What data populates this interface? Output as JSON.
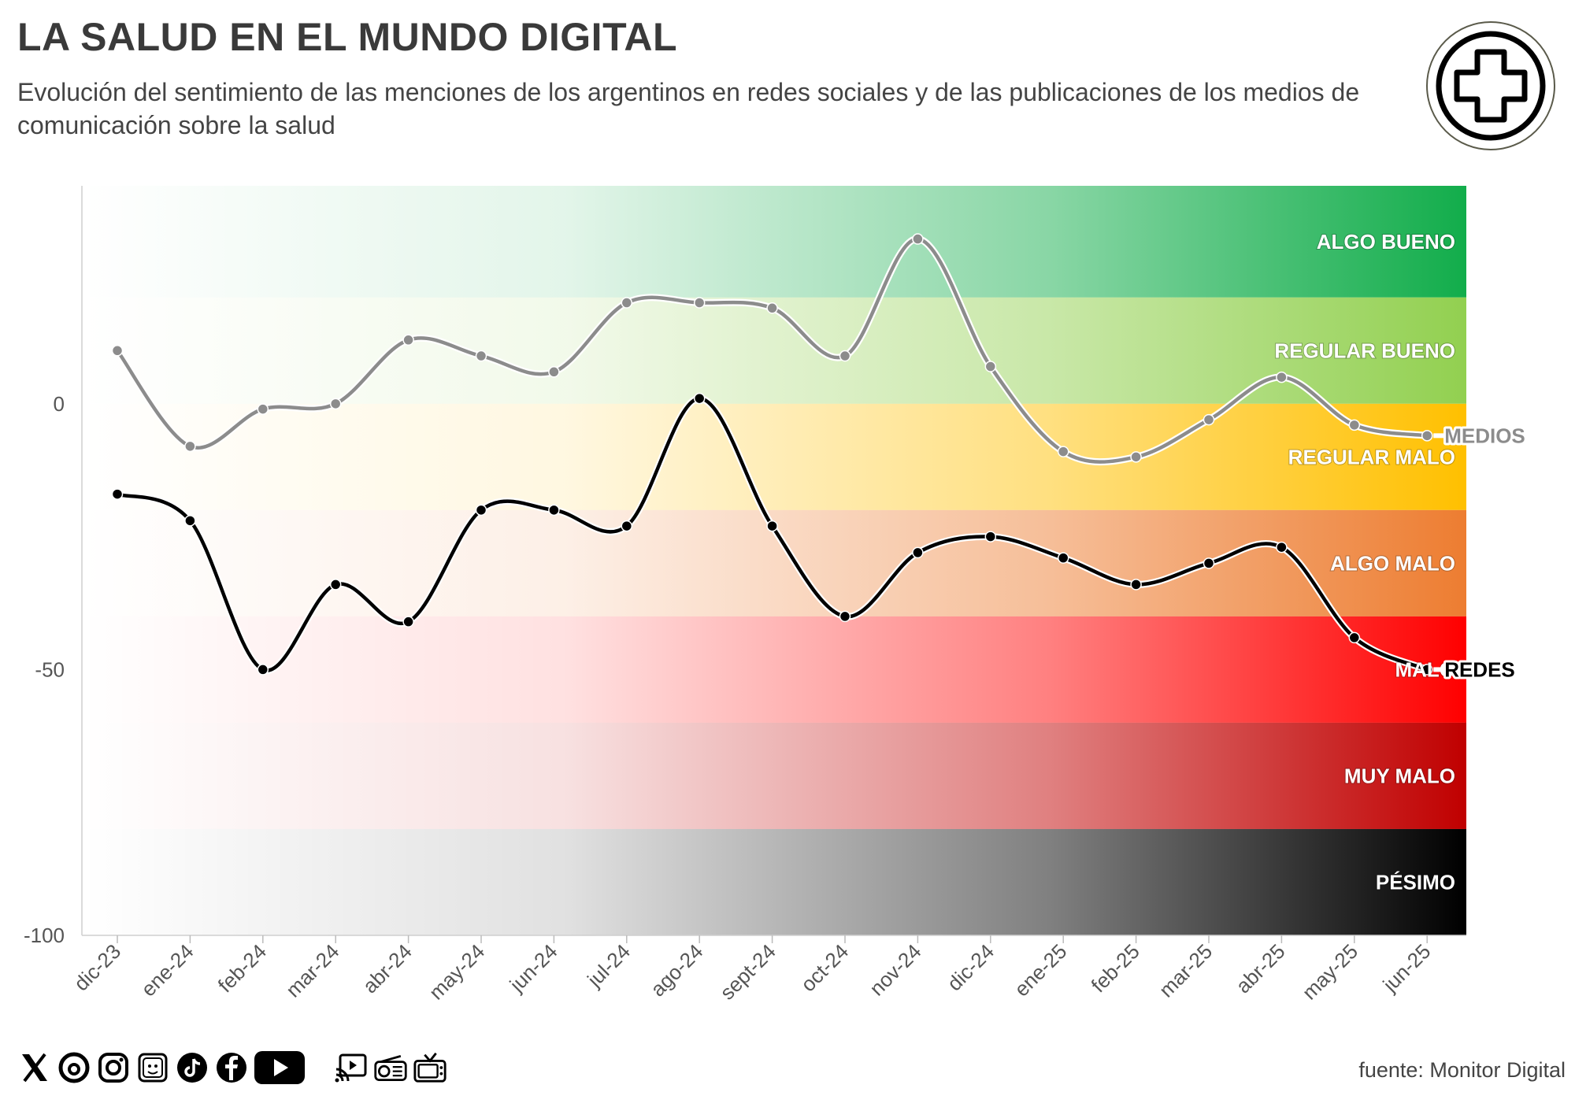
{
  "header": {
    "title": "LA SALUD EN EL MUNDO DIGITAL",
    "subtitle": "Evolución del sentimiento de las menciones de los argentinos en redes sociales y de las publicaciones de los medios de comunicación sobre la salud"
  },
  "footer": {
    "source": "fuente: Monitor Digital",
    "social_icons": [
      "x-icon",
      "threads-icon",
      "instagram-icon",
      "kick-icon",
      "tiktok-icon",
      "facebook-icon",
      "youtube-icon"
    ],
    "media_icons": [
      "digital-media-icon",
      "radio-icon",
      "tv-icon"
    ]
  },
  "chart_data": {
    "type": "line",
    "title": "LA SALUD EN EL MUNDO DIGITAL",
    "xlabel": "",
    "ylabel": "",
    "ylim": [
      -100,
      41
    ],
    "yticks": [
      0,
      -50,
      -100
    ],
    "categories": [
      "dic-23",
      "ene-24",
      "feb-24",
      "mar-24",
      "abr-24",
      "may-24",
      "jun-24",
      "jul-24",
      "ago-24",
      "sept-24",
      "oct-24",
      "nov-24",
      "dic-24",
      "ene-25",
      "feb-25",
      "mar-25",
      "abr-25",
      "may-25",
      "jun-25"
    ],
    "series": [
      {
        "name": "MEDIOS",
        "color": "#8c8c8c",
        "values": [
          10,
          -8,
          -1,
          0,
          12,
          9,
          6,
          19,
          19,
          18,
          9,
          31,
          7,
          -9,
          -10,
          -3,
          5,
          -4,
          -6
        ]
      },
      {
        "name": "REDES",
        "color": "#000000",
        "values": [
          -17,
          -22,
          -50,
          -34,
          -41,
          -20,
          -20,
          -23,
          1,
          -23,
          -40,
          -28,
          -25,
          -29,
          -34,
          -30,
          -27,
          -44,
          -50
        ]
      }
    ],
    "bands": [
      {
        "label": "ALGO BUENO",
        "from": 20,
        "to": 41,
        "color": "#12ad4b"
      },
      {
        "label": "REGULAR BUENO",
        "from": 0,
        "to": 20,
        "color": "#92d050"
      },
      {
        "label": "REGULAR MALO",
        "from": -20,
        "to": 0,
        "color": "#ffc000"
      },
      {
        "label": "ALGO MALO",
        "from": -40,
        "to": -20,
        "color": "#ed7d31"
      },
      {
        "label": "MALO",
        "from": -60,
        "to": -40,
        "color": "#ff0000"
      },
      {
        "label": "MUY MALO",
        "from": -80,
        "to": -60,
        "color": "#c00000"
      },
      {
        "label": "PÉSIMO",
        "from": -100,
        "to": -80,
        "color": "#000000"
      }
    ]
  }
}
